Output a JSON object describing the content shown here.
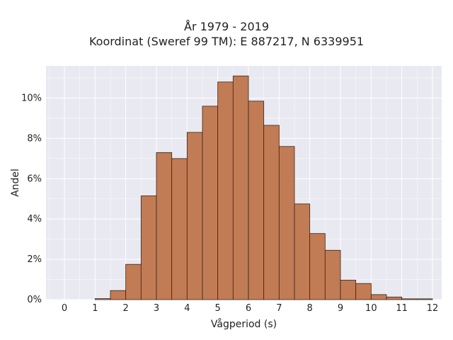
{
  "chart_data": {
    "type": "bar",
    "title_line1": "År 1979 - 2019",
    "title_line2": "Koordinat (Sweref 99 TM): E 887217, N 6339951",
    "xlabel": "Vågperiod (s)",
    "ylabel": "Andel",
    "xlim": [
      -0.6,
      12.3
    ],
    "ylim": [
      0,
      11.6
    ],
    "x_ticks": [
      0,
      1,
      2,
      3,
      4,
      5,
      6,
      7,
      8,
      9,
      10,
      11,
      12
    ],
    "y_ticks": [
      0,
      2,
      4,
      6,
      8,
      10
    ],
    "y_tick_labels": [
      "0%",
      "2%",
      "4%",
      "6%",
      "8%",
      "10%"
    ],
    "bin_width": 0.5,
    "bins": [
      {
        "start": 1.0,
        "value": 0.05
      },
      {
        "start": 1.5,
        "value": 0.45
      },
      {
        "start": 2.0,
        "value": 1.75
      },
      {
        "start": 2.5,
        "value": 5.15
      },
      {
        "start": 3.0,
        "value": 7.3
      },
      {
        "start": 3.5,
        "value": 7.0
      },
      {
        "start": 4.0,
        "value": 8.3
      },
      {
        "start": 4.5,
        "value": 9.6
      },
      {
        "start": 5.0,
        "value": 10.8
      },
      {
        "start": 5.5,
        "value": 11.1
      },
      {
        "start": 6.0,
        "value": 9.85
      },
      {
        "start": 6.5,
        "value": 8.65
      },
      {
        "start": 7.0,
        "value": 7.6
      },
      {
        "start": 7.5,
        "value": 4.75
      },
      {
        "start": 8.0,
        "value": 3.28
      },
      {
        "start": 8.5,
        "value": 2.45
      },
      {
        "start": 9.0,
        "value": 0.97
      },
      {
        "start": 9.5,
        "value": 0.8
      },
      {
        "start": 10.0,
        "value": 0.25
      },
      {
        "start": 10.5,
        "value": 0.13
      },
      {
        "start": 11.0,
        "value": 0.04
      },
      {
        "start": 11.5,
        "value": 0.04
      }
    ],
    "bar_color": "#c17c55",
    "bar_edge_color": "#3a2418",
    "plot_background": "#e9e9f1",
    "grid": true,
    "grid_color": "#ffffff"
  }
}
